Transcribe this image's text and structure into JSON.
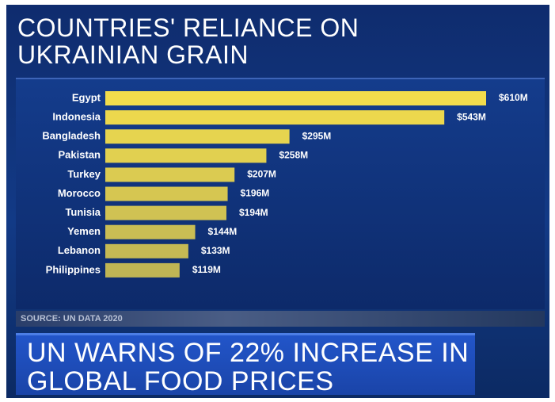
{
  "chart_data": {
    "type": "bar",
    "orientation": "horizontal",
    "title": "COUNTRIES' RELIANCE ON UKRAINIAN GRAIN",
    "categories": [
      "Egypt",
      "Indonesia",
      "Bangladesh",
      "Pakistan",
      "Turkey",
      "Morocco",
      "Tunisia",
      "Yemen",
      "Lebanon",
      "Philippines"
    ],
    "values": [
      610,
      543,
      295,
      258,
      207,
      196,
      194,
      144,
      133,
      119
    ],
    "value_labels": [
      "$610M",
      "$543M",
      "$295M",
      "$258M",
      "$207M",
      "$196M",
      "$194M",
      "$144M",
      "$133M",
      "$119M"
    ],
    "color": "#f2dc4c",
    "source": "SOURCE: UN DATA 2020",
    "headline": "UN WARNS OF 22% INCREASE IN GLOBAL FOOD PRICES"
  }
}
